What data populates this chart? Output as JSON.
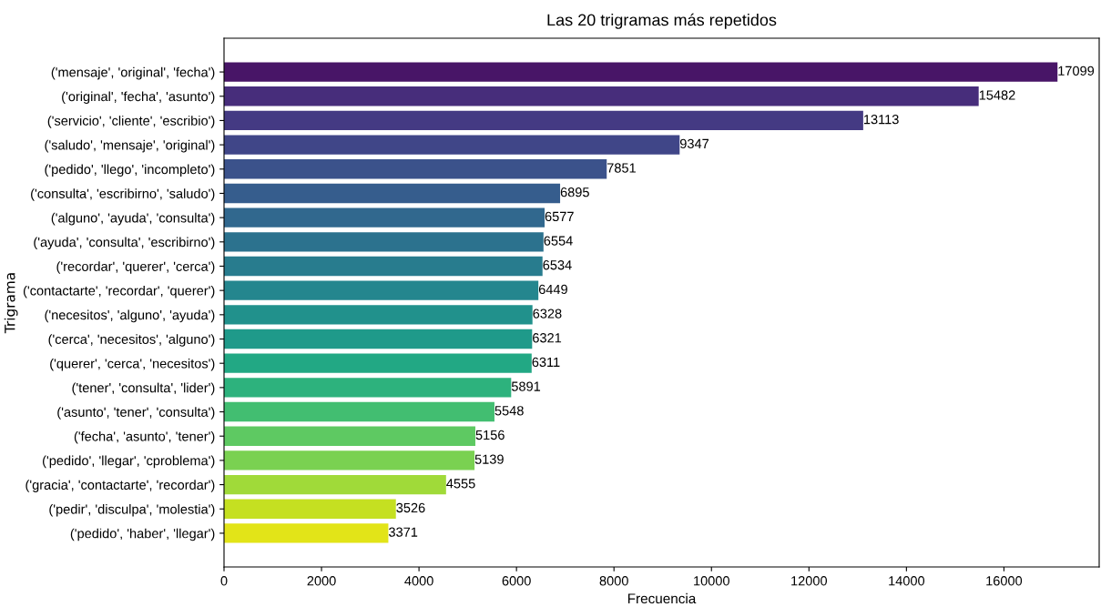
{
  "chart_data": {
    "type": "bar",
    "orientation": "horizontal",
    "title": "Las 20 trigramas más repetidos",
    "xlabel": "Frecuencia",
    "ylabel": "Trigrama",
    "categories": [
      "('mensaje', 'original', 'fecha')",
      "('original', 'fecha', 'asunto')",
      "('servicio', 'cliente', 'escribio')",
      "('saludo', 'mensaje', 'original')",
      "('pedido', 'llego', 'incompleto')",
      "('consulta', 'escribirno', 'saludo')",
      "('alguno', 'ayuda', 'consulta')",
      "('ayuda', 'consulta', 'escribirno')",
      "('recordar', 'querer', 'cerca')",
      "('contactarte', 'recordar', 'querer')",
      "('necesitos', 'alguno', 'ayuda')",
      "('cerca', 'necesitos', 'alguno')",
      "('querer', 'cerca', 'necesitos')",
      "('tener', 'consulta', 'lider')",
      "('asunto', 'tener', 'consulta')",
      "('fecha', 'asunto', 'tener')",
      "('pedido', 'llegar', 'cproblema')",
      "('gracia', 'contactarte', 'recordar')",
      "('pedir', 'disculpa', 'molestia')",
      "('pedido', 'haber', 'llegar')"
    ],
    "values": [
      17099,
      15482,
      13113,
      9347,
      7851,
      6895,
      6577,
      6554,
      6534,
      6449,
      6328,
      6321,
      6311,
      5891,
      5548,
      5156,
      5139,
      4555,
      3526,
      3371
    ],
    "colors": [
      "#481567",
      "#472d7b",
      "#443a83",
      "#404688",
      "#3b528b",
      "#365d8d",
      "#31688e",
      "#2c728e",
      "#287c8e",
      "#24868e",
      "#21918c",
      "#1f9a8a",
      "#22a884",
      "#2db27d",
      "#42be71",
      "#5ec962",
      "#7ad151",
      "#a0da39",
      "#c5e021",
      "#e2e418"
    ],
    "data_labels": true,
    "xlim": [
      0,
      17954
    ],
    "xticks": [
      0,
      2000,
      4000,
      6000,
      8000,
      10000,
      12000,
      14000,
      16000
    ],
    "grid": false,
    "legend": false
  }
}
